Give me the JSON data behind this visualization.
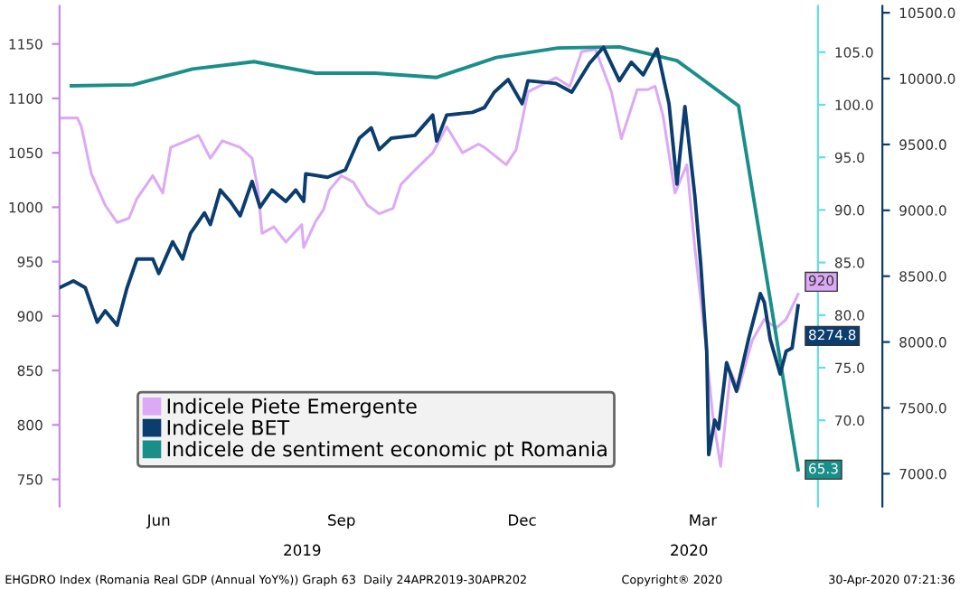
{
  "chart_data": {
    "type": "line",
    "xlim": [
      "2019-04-24",
      "2020-05-10"
    ],
    "xticks": [
      {
        "value": "2019-06-13",
        "label": "Jun"
      },
      {
        "value": "2019-09-13",
        "label": "Sep"
      },
      {
        "value": "2019-12-13",
        "label": "Dec"
      },
      {
        "value": "2020-03-13",
        "label": "Mar"
      }
    ],
    "ylim": [
      725,
      1185
    ],
    "yticks": [
      750,
      800,
      850,
      900,
      950,
      1000,
      1050,
      1100,
      1150
    ],
    "y2lim": [
      61.8,
      109.4
    ],
    "y2ticks": [
      {
        "value": 70,
        "label": "70.0"
      },
      {
        "value": 75,
        "label": "75.0"
      },
      {
        "value": 80,
        "label": "80.0"
      },
      {
        "value": 85,
        "label": "85.0"
      },
      {
        "value": 90,
        "label": "90.0"
      },
      {
        "value": 95,
        "label": "95.0"
      },
      {
        "value": 100,
        "label": "100.0"
      },
      {
        "value": 105,
        "label": "105.0"
      }
    ],
    "y3lim": [
      6751,
      10552
    ],
    "y3ticks": [
      {
        "value": 7000,
        "label": "7000.0"
      },
      {
        "value": 7500,
        "label": "7500.0"
      },
      {
        "value": 8000,
        "label": "8000.0"
      },
      {
        "value": 8500,
        "label": "8500.0"
      },
      {
        "value": 9000,
        "label": "9000.0"
      },
      {
        "value": 9500,
        "label": "9500.0"
      },
      {
        "value": 10000,
        "label": "10000.0"
      },
      {
        "value": 10500,
        "label": "10500.0"
      }
    ],
    "grid": false,
    "legend": "bottom left",
    "marker": "none",
    "line_style": "solid",
    "series": [
      {
        "name": "Indicele Piete Emergente",
        "color": "#dcaaf5",
        "x": [
          "2019-04-24",
          "2019-05-03",
          "2019-05-05",
          "2019-05-10",
          "2019-05-17",
          "2019-05-23",
          "2019-05-29",
          "2019-06-02",
          "2019-06-10",
          "2019-06-15",
          "2019-06-19",
          "2019-06-27",
          "2019-07-03",
          "2019-07-09",
          "2019-07-15",
          "2019-07-24",
          "2019-07-30",
          "2019-08-02",
          "2019-08-04",
          "2019-08-10",
          "2019-08-16",
          "2019-08-24",
          "2019-08-25",
          "2019-08-31",
          "2019-09-04",
          "2019-09-07",
          "2019-09-13",
          "2019-09-19",
          "2019-09-26",
          "2019-10-02",
          "2019-10-09",
          "2019-10-13",
          "2019-10-20",
          "2019-10-29",
          "2019-11-05",
          "2019-11-13",
          "2019-11-21",
          "2019-11-24",
          "2019-12-05",
          "2019-12-10",
          "2019-12-16",
          "2019-12-30",
          "2020-01-06",
          "2020-01-12",
          "2020-01-19",
          "2020-01-27",
          "2020-02-01",
          "2020-02-09",
          "2020-02-14",
          "2020-02-18",
          "2020-02-22",
          "2020-02-28",
          "2020-03-05",
          "2020-03-09",
          "2020-03-14",
          "2020-03-18",
          "2020-03-22",
          "2020-03-27",
          "2020-03-31",
          "2020-04-07",
          "2020-04-13",
          "2020-04-19",
          "2020-04-24",
          "2020-04-30"
        ],
        "values": [
          1082,
          1082,
          1074,
          1031,
          1002,
          986,
          990,
          1008,
          1029,
          1013,
          1055,
          1061,
          1066,
          1045,
          1061,
          1055,
          1045,
          1016,
          976,
          982,
          968,
          984,
          963,
          987,
          998,
          1016,
          1029,
          1023,
          1002,
          994,
          999,
          1021,
          1034,
          1050,
          1074,
          1050,
          1058,
          1055,
          1039,
          1053,
          1106,
          1119,
          1111,
          1143,
          1145,
          1106,
          1063,
          1108,
          1108,
          1111,
          1084,
          1013,
          1039,
          963,
          883,
          809,
          762,
          849,
          833,
          878,
          897,
          889,
          897,
          920
        ],
        "value_labels": [
          null,
          null,
          null,
          null,
          null,
          null,
          null,
          null,
          null,
          null,
          null,
          null,
          null,
          null,
          null,
          null,
          null,
          null,
          null,
          null,
          null,
          null,
          null,
          null,
          null,
          null,
          null,
          null,
          null,
          null,
          null,
          null,
          null,
          null,
          null,
          null,
          null,
          null,
          null,
          null,
          null,
          null,
          null,
          null,
          null,
          null,
          null,
          null,
          null,
          null,
          null,
          null,
          null,
          null,
          null,
          null,
          null,
          null,
          null,
          null,
          null,
          null,
          null,
          "920"
        ]
      },
      {
        "name": "Indicele BET",
        "color": "#0b3d6e",
        "axis": "y3",
        "x": [
          "2019-04-24",
          "2019-05-01",
          "2019-05-07",
          "2019-05-13",
          "2019-05-17",
          "2019-05-23",
          "2019-05-28",
          "2019-06-02",
          "2019-06-10",
          "2019-06-13",
          "2019-06-20",
          "2019-06-25",
          "2019-06-29",
          "2019-07-06",
          "2019-07-09",
          "2019-07-14",
          "2019-07-19",
          "2019-07-24",
          "2019-07-30",
          "2019-08-03",
          "2019-08-09",
          "2019-08-16",
          "2019-08-21",
          "2019-08-25",
          "2019-08-26",
          "2019-09-06",
          "2019-09-15",
          "2019-09-22",
          "2019-09-28",
          "2019-10-02",
          "2019-10-08",
          "2019-10-20",
          "2019-10-29",
          "2019-10-31",
          "2019-11-05",
          "2019-11-18",
          "2019-11-24",
          "2019-11-29",
          "2019-12-06",
          "2019-12-13",
          "2019-12-16",
          "2019-12-30",
          "2020-01-07",
          "2020-01-16",
          "2020-01-23",
          "2020-01-31",
          "2020-02-06",
          "2020-02-12",
          "2020-02-19",
          "2020-02-25",
          "2020-02-29",
          "2020-03-04",
          "2020-03-09",
          "2020-03-12",
          "2020-03-15",
          "2020-03-16",
          "2020-03-19",
          "2020-03-21",
          "2020-03-25",
          "2020-03-30",
          "2020-04-05",
          "2020-04-11",
          "2020-04-13",
          "2020-04-16",
          "2020-04-21",
          "2020-04-24",
          "2020-04-27",
          "2020-04-30"
        ],
        "values": [
          8412,
          8464,
          8412,
          8150,
          8237,
          8128,
          8412,
          8630,
          8630,
          8521,
          8761,
          8630,
          8826,
          8980,
          8892,
          9154,
          9068,
          8958,
          9220,
          9023,
          9154,
          9068,
          9154,
          9068,
          9277,
          9251,
          9307,
          9547,
          9626,
          9461,
          9547,
          9569,
          9723,
          9526,
          9723,
          9744,
          9780,
          9897,
          9993,
          9809,
          9984,
          9963,
          9897,
          10116,
          10238,
          9984,
          10124,
          10028,
          10225,
          9809,
          9199,
          9788,
          9111,
          8587,
          7931,
          7145,
          7407,
          7341,
          7843,
          7626,
          8019,
          8368,
          8302,
          8019,
          7757,
          7931,
          7954,
          8274.8
        ],
        "value_labels": [
          null,
          null,
          null,
          null,
          null,
          null,
          null,
          null,
          null,
          null,
          null,
          null,
          null,
          null,
          null,
          null,
          null,
          null,
          null,
          null,
          null,
          null,
          null,
          null,
          null,
          null,
          null,
          null,
          null,
          null,
          null,
          null,
          null,
          null,
          null,
          null,
          null,
          null,
          null,
          null,
          null,
          null,
          null,
          null,
          null,
          null,
          null,
          null,
          null,
          null,
          null,
          null,
          null,
          null,
          null,
          null,
          null,
          null,
          null,
          null,
          null,
          null,
          null,
          null,
          null,
          null,
          null,
          "8274.8"
        ]
      },
      {
        "name": "Indicele de sentiment economic pt Romania",
        "color": "#1a8f8a",
        "axis": "y2",
        "x": [
          "2019-04-30",
          "2019-05-31",
          "2019-06-30",
          "2019-07-31",
          "2019-08-31",
          "2019-09-30",
          "2019-10-31",
          "2019-11-30",
          "2019-12-31",
          "2020-01-31",
          "2020-02-29",
          "2020-03-31",
          "2020-04-30"
        ],
        "values": [
          101.8,
          101.9,
          103.4,
          104.1,
          103.0,
          103.0,
          102.6,
          104.5,
          105.4,
          105.5,
          104.2,
          99.9,
          65.3
        ],
        "value_labels": [
          null,
          null,
          null,
          null,
          null,
          null,
          null,
          null,
          null,
          null,
          null,
          null,
          "65.3"
        ]
      }
    ],
    "annotations": [
      "2019",
      "2020",
      "EHGDRO Index (Romania Real GDP (Annual YoY%)) Graph 63  Daily 24APR2019-30APR202",
      "Copyright® 2020",
      "30-Apr-2020 07:21:36"
    ]
  }
}
